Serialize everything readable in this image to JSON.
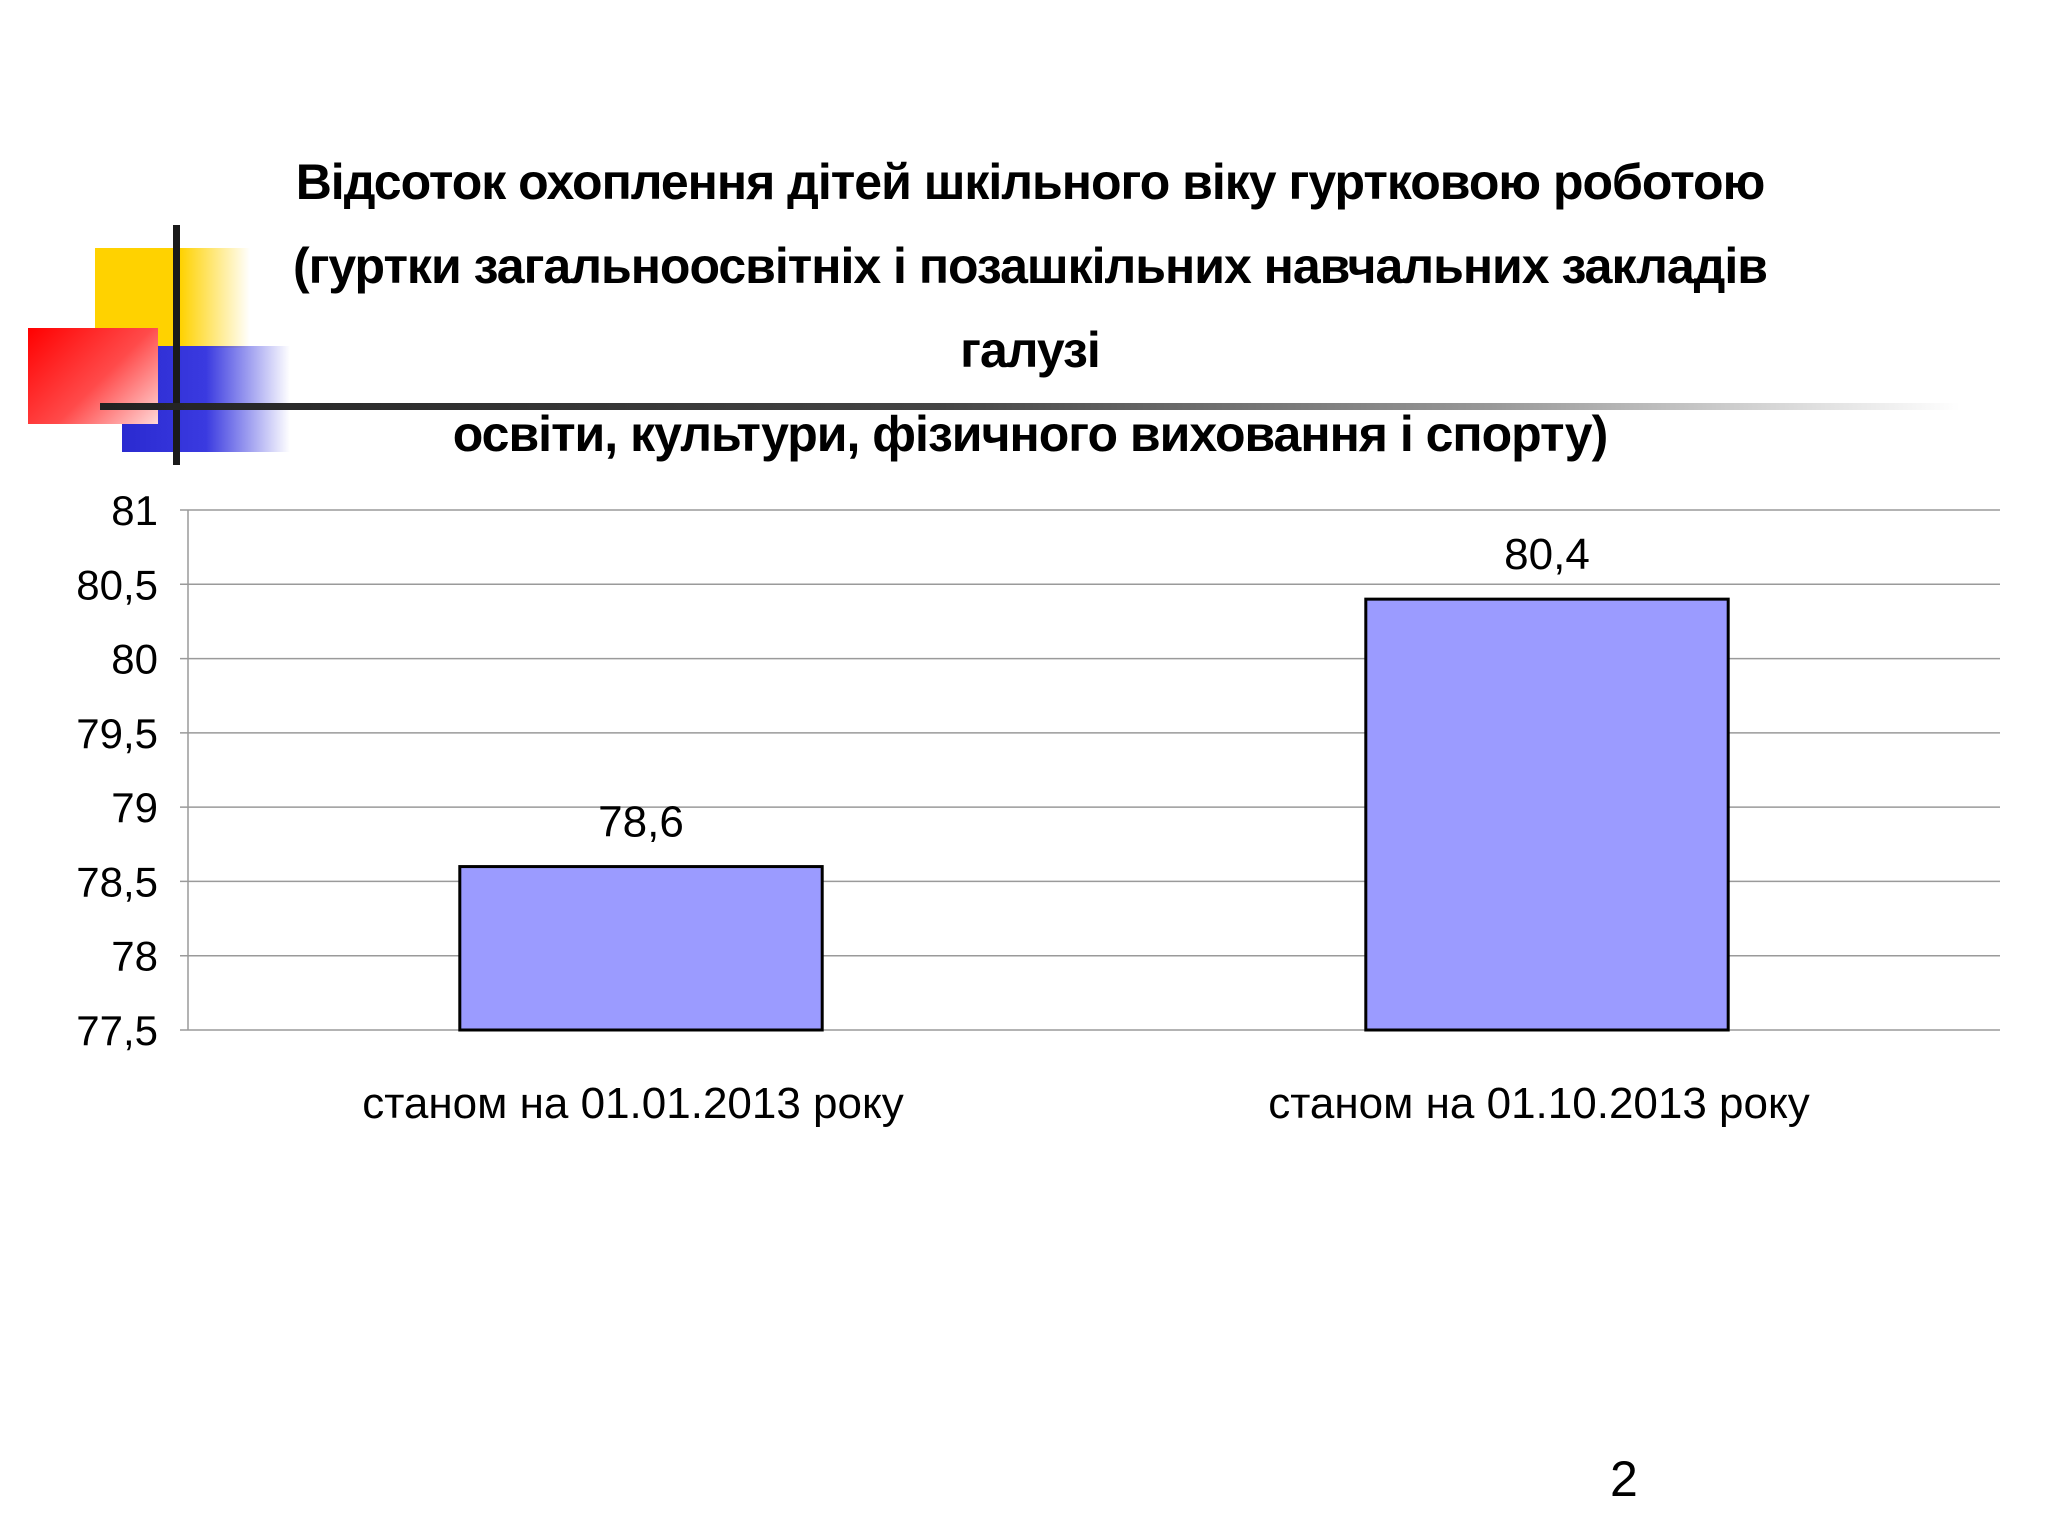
{
  "title_lines": [
    "Відсоток охоплення дітей  шкільного віку гуртковою роботою",
    "(гуртки загальноосвітніх і позашкільних навчальних закладів галузі",
    "освіти, культури, фізичного виховання і спорту)"
  ],
  "page_number": "2",
  "colors": {
    "bar_fill": "#9b9bff",
    "bar_stroke": "#000000",
    "grid": "#9a9a9a"
  },
  "chart_data": {
    "type": "bar",
    "title": "Відсоток охоплення дітей  шкільного віку гуртковою роботою (гуртки загальноосвітніх і позашкільних навчальних закладів галузі освіти, культури, фізичного виховання і спорту)",
    "categories": [
      "станом на 01.01.2013 року",
      "станом на 01.10.2013 року"
    ],
    "values": [
      78.6,
      80.4
    ],
    "data_labels": [
      "78,6",
      "80,4"
    ],
    "ylim": [
      77.5,
      81
    ],
    "yticks": [
      77.5,
      78,
      78.5,
      79,
      79.5,
      80,
      80.5,
      81
    ],
    "ytick_labels": [
      "77,5",
      "78",
      "78,5",
      "79",
      "79,5",
      "80",
      "80,5",
      "81"
    ],
    "xlabel": "",
    "ylabel": "",
    "grid": true,
    "legend": "none"
  }
}
